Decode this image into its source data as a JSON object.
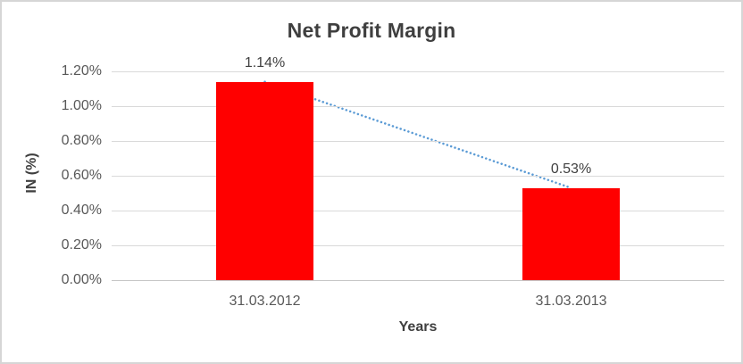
{
  "chart_data": {
    "type": "bar",
    "title": "Net Profit Margin",
    "categories": [
      "31.03.2012",
      "31.03.2013"
    ],
    "values": [
      1.14,
      0.53
    ],
    "data_labels": [
      "1.14%",
      "0.53%"
    ],
    "xlabel": "Years",
    "ylabel": "IN (%)",
    "ylim": [
      0,
      1.2
    ],
    "ytick_step": 0.2,
    "ytick_labels": [
      "0.00%",
      "0.20%",
      "0.40%",
      "0.60%",
      "0.80%",
      "1.00%",
      "1.20%"
    ],
    "grid": true,
    "legend": "none",
    "colors": {
      "bar": "#FF0000",
      "trendline": "#5B9BD5",
      "gridline": "#D9D9D9",
      "axis_line": "#C6C6C6",
      "tick_label": "#595959",
      "data_label": "#404040",
      "title": "#3F3F3F",
      "axis_title": "#3F3F3F",
      "chart_border": "#D6D6D6"
    },
    "trendline": {
      "type": "linear",
      "style": "dotted",
      "color": "#5B9BD5",
      "from_value": 1.14,
      "to_value": 0.53
    }
  }
}
